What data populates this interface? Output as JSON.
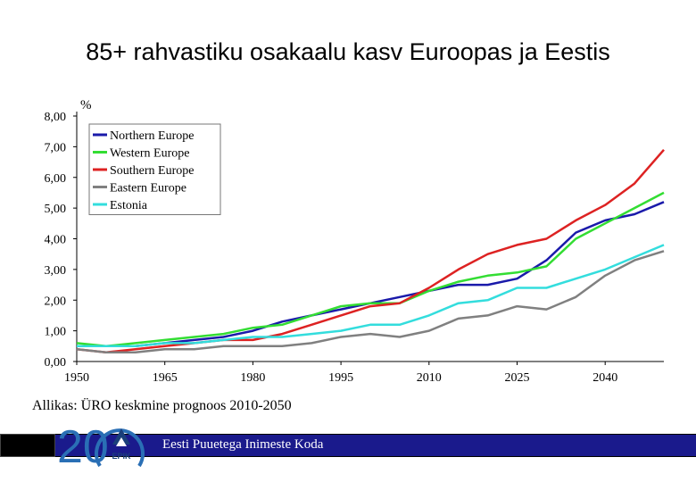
{
  "title": "85+ rahvastiku osakaalu kasv Euroopas ja Eestis",
  "source": "Allikas: ÜRO keskmine prognoos 2010-2050",
  "footer": {
    "organization": "Eesti Puuetega Inimeste Koda"
  },
  "logo": {
    "number_text": "20",
    "initials": "EPIK"
  },
  "chart_data": {
    "type": "line",
    "title": "85+ rahvastiku osakaalu kasv Euroopas ja Eestis",
    "ylabel": "%",
    "xlabel": "",
    "xlim": [
      1950,
      2050
    ],
    "ylim": [
      0,
      8
    ],
    "x_ticks": [
      1950,
      1965,
      1980,
      1995,
      2010,
      2025,
      2040
    ],
    "y_ticks": [
      "0,00",
      "1,00",
      "2,00",
      "3,00",
      "4,00",
      "5,00",
      "6,00",
      "7,00",
      "8,00"
    ],
    "legend_position": "top-left",
    "grid": false,
    "x": [
      1950,
      1955,
      1960,
      1965,
      1970,
      1975,
      1980,
      1985,
      1990,
      1995,
      2000,
      2005,
      2010,
      2015,
      2020,
      2025,
      2030,
      2035,
      2040,
      2045,
      2050
    ],
    "series": [
      {
        "name": "Northern Europe",
        "color": "#1a1aaa",
        "values": [
          0.5,
          0.5,
          0.5,
          0.6,
          0.7,
          0.8,
          1.0,
          1.3,
          1.5,
          1.7,
          1.9,
          2.1,
          2.3,
          2.5,
          2.5,
          2.7,
          3.3,
          4.2,
          4.6,
          4.8,
          5.2
        ]
      },
      {
        "name": "Western Europe",
        "color": "#33dd33",
        "values": [
          0.6,
          0.5,
          0.6,
          0.7,
          0.8,
          0.9,
          1.1,
          1.2,
          1.5,
          1.8,
          1.9,
          1.9,
          2.3,
          2.6,
          2.8,
          2.9,
          3.1,
          4.0,
          4.5,
          5.0,
          5.5
        ]
      },
      {
        "name": "Southern Europe",
        "color": "#dd2222",
        "values": [
          0.4,
          0.3,
          0.4,
          0.5,
          0.6,
          0.7,
          0.7,
          0.9,
          1.2,
          1.5,
          1.8,
          1.9,
          2.4,
          3.0,
          3.5,
          3.8,
          4.0,
          4.6,
          5.1,
          5.8,
          6.9
        ]
      },
      {
        "name": "Eastern Europe",
        "color": "#808080",
        "values": [
          0.4,
          0.3,
          0.3,
          0.4,
          0.4,
          0.5,
          0.5,
          0.5,
          0.6,
          0.8,
          0.9,
          0.8,
          1.0,
          1.4,
          1.5,
          1.8,
          1.7,
          2.1,
          2.8,
          3.3,
          3.6
        ]
      },
      {
        "name": "Estonia",
        "color": "#33dddd",
        "values": [
          0.5,
          0.5,
          0.5,
          0.6,
          0.6,
          0.7,
          0.8,
          0.8,
          0.9,
          1.0,
          1.2,
          1.2,
          1.5,
          1.9,
          2.0,
          2.4,
          2.4,
          2.7,
          3.0,
          3.4,
          3.8
        ]
      }
    ]
  }
}
